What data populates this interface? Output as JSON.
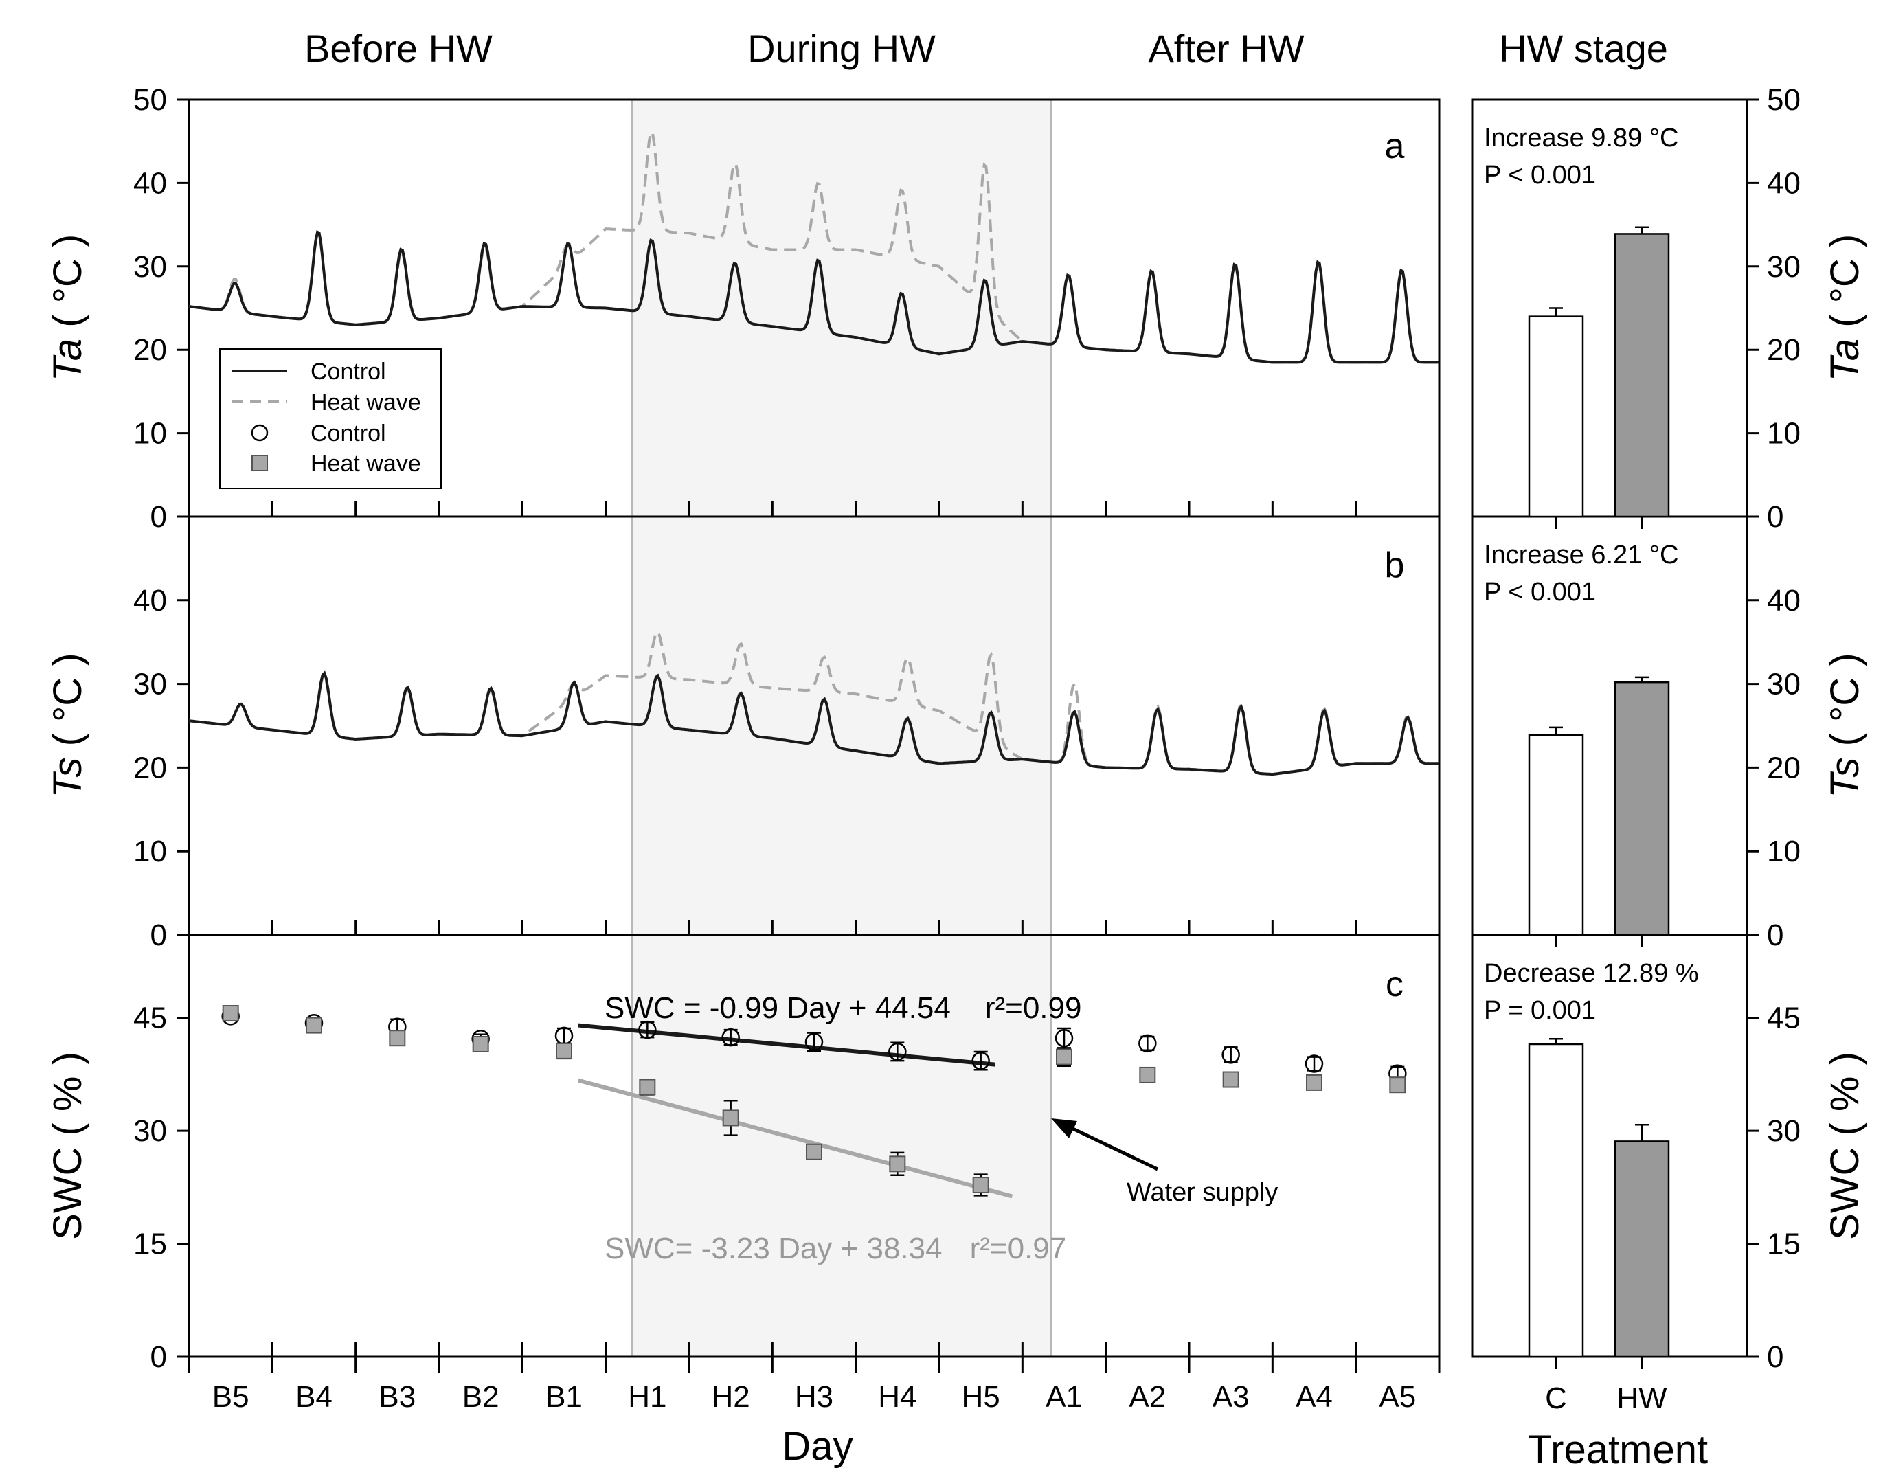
{
  "stage_labels": [
    "Before HW",
    "During HW",
    "After HW",
    "HW stage"
  ],
  "x_axis": {
    "label": "Day",
    "ticks": [
      "B5",
      "B4",
      "B3",
      "B2",
      "B1",
      "H1",
      "H2",
      "H3",
      "H4",
      "H5",
      "A1",
      "A2",
      "A3",
      "A4",
      "A5"
    ]
  },
  "legend": {
    "line_control": "Control",
    "line_heatwave": "Heat wave",
    "point_control": "Control",
    "point_heatwave": "Heat wave"
  },
  "colors": {
    "control": "#1a1a1a",
    "heatwave": "#a8a8a8",
    "shade": "#f4f4f4",
    "bar_hw": "#999999"
  },
  "panels": {
    "a": {
      "letter": "a",
      "ylabel_sym": "Ta",
      "ylabel_unit": "( °C )",
      "ylim": [
        0,
        50
      ],
      "yticks": [
        "0",
        "10",
        "20",
        "30",
        "40",
        "50"
      ]
    },
    "b": {
      "letter": "b",
      "ylabel_sym": "Ts",
      "ylabel_unit": "( °C )",
      "ylim": [
        0,
        50
      ],
      "yticks": [
        "0",
        "10",
        "20",
        "30",
        "40"
      ]
    },
    "c": {
      "letter": "c",
      "ylabel": "SWC ( % )",
      "ylim": [
        0,
        56
      ],
      "yticks": [
        "0",
        "15",
        "30",
        "45"
      ],
      "eq_control": "SWC = -0.99 Day + 44.54",
      "r2_control": "r²=0.99",
      "eq_heatwave": "SWC= -3.23 Day + 38.34",
      "r2_heatwave": "r²=0.97",
      "annotation": "Water supply"
    }
  },
  "bars": {
    "categories": [
      "C",
      "HW"
    ],
    "xlabel": "Treatment",
    "a": {
      "values": [
        24.0,
        33.9
      ],
      "errors": [
        1.0,
        0.8
      ],
      "text1": "Increase 9.89 °C",
      "text2": "P < 0.001"
    },
    "b": {
      "values": [
        23.9,
        30.2
      ],
      "errors": [
        0.9,
        0.6
      ],
      "text1": "Increase 6.21 °C",
      "text2": "P < 0.001"
    },
    "c": {
      "values": [
        41.5,
        28.6
      ],
      "errors": [
        0.7,
        2.2
      ],
      "text1": "Decrease 12.89 %",
      "text2": "P = 0.001"
    }
  },
  "chart_data": [
    {
      "type": "line",
      "panel": "a",
      "ylabel": "Ta ( °C )",
      "xlabel": "Day",
      "ylim": [
        0,
        50
      ],
      "categories": [
        "B5",
        "B4",
        "B3",
        "B2",
        "B1",
        "H1",
        "H2",
        "H3",
        "H4",
        "H5",
        "A1",
        "A2",
        "A3",
        "A4",
        "A5"
      ],
      "series": [
        {
          "name": "Control",
          "line": "solid",
          "peaks": [
            28.0,
            34.2,
            32.1,
            32.8,
            32.8,
            33.2,
            30.4,
            30.8,
            26.8,
            28.4,
            29.0,
            29.5,
            30.3,
            30.6,
            29.6
          ]
        },
        {
          "name": "Heat wave",
          "line": "dashed",
          "peaks": [
            28.5,
            34.0,
            31.8,
            32.4,
            32.6,
            46.2,
            42.4,
            40.0,
            39.2,
            42.3,
            29.0,
            29.5,
            30.3,
            30.6,
            29.6
          ]
        }
      ]
    },
    {
      "type": "line",
      "panel": "b",
      "ylabel": "Ts ( °C )",
      "xlabel": "Day",
      "ylim": [
        0,
        50
      ],
      "categories": [
        "B5",
        "B4",
        "B3",
        "B2",
        "B1",
        "H1",
        "H2",
        "H3",
        "H4",
        "H5",
        "A1",
        "A2",
        "A3",
        "A4",
        "A5"
      ],
      "series": [
        {
          "name": "Control",
          "line": "solid",
          "peaks": [
            27.6,
            31.3,
            29.6,
            29.5,
            30.2,
            31.0,
            28.9,
            28.2,
            25.9,
            26.6,
            26.7,
            27.0,
            27.3,
            26.8,
            26.0
          ]
        },
        {
          "name": "Heat wave",
          "line": "dashed",
          "peaks": [
            27.6,
            31.0,
            29.4,
            29.3,
            30.0,
            36.2,
            34.8,
            33.2,
            33.1,
            33.5,
            30.0,
            27.3,
            27.5,
            27.0,
            26.2
          ]
        }
      ]
    },
    {
      "type": "scatter",
      "panel": "c",
      "ylabel": "SWC ( % )",
      "xlabel": "Day",
      "ylim": [
        0,
        56
      ],
      "categories": [
        "B5",
        "B4",
        "B3",
        "B2",
        "B1",
        "H1",
        "H2",
        "H3",
        "H4",
        "H5",
        "A1",
        "A2",
        "A3",
        "A4",
        "A5"
      ],
      "series": [
        {
          "name": "Control",
          "marker": "circle",
          "values": [
            45.2,
            44.3,
            43.8,
            42.2,
            42.6,
            43.4,
            42.4,
            41.8,
            40.5,
            39.3,
            42.3,
            41.6,
            40.1,
            38.9,
            37.6
          ],
          "errors": [
            0.5,
            0.7,
            1.0,
            0.6,
            1.0,
            1.0,
            1.0,
            1.2,
            1.2,
            1.2,
            1.3,
            0.9,
            1.0,
            0.9,
            0.9
          ]
        },
        {
          "name": "Heat wave",
          "marker": "square",
          "values": [
            45.6,
            44.0,
            42.3,
            41.5,
            40.6,
            35.8,
            31.7,
            27.2,
            25.6,
            22.8,
            39.8,
            37.4,
            36.8,
            36.4,
            36.1
          ],
          "errors": [
            0.6,
            0.7,
            0.8,
            0.9,
            1.0,
            1.0,
            2.3,
            0.8,
            1.5,
            1.4,
            1.2,
            0.7,
            0.7,
            0.8,
            0.9
          ]
        }
      ],
      "fits": [
        {
          "series": "Control",
          "slope": -0.99,
          "intercept": 44.54,
          "r2": 0.99
        },
        {
          "series": "Heat wave",
          "slope": -3.23,
          "intercept": 38.34,
          "r2": 0.97
        }
      ]
    },
    {
      "type": "bar",
      "panels": [
        "a",
        "b",
        "c"
      ],
      "categories": [
        "C",
        "HW"
      ],
      "xlabel": "Treatment",
      "series": [
        {
          "name": "Ta",
          "values": [
            24.0,
            33.9
          ]
        },
        {
          "name": "Ts",
          "values": [
            23.9,
            30.2
          ]
        },
        {
          "name": "SWC",
          "values": [
            41.5,
            28.6
          ]
        }
      ]
    }
  ]
}
